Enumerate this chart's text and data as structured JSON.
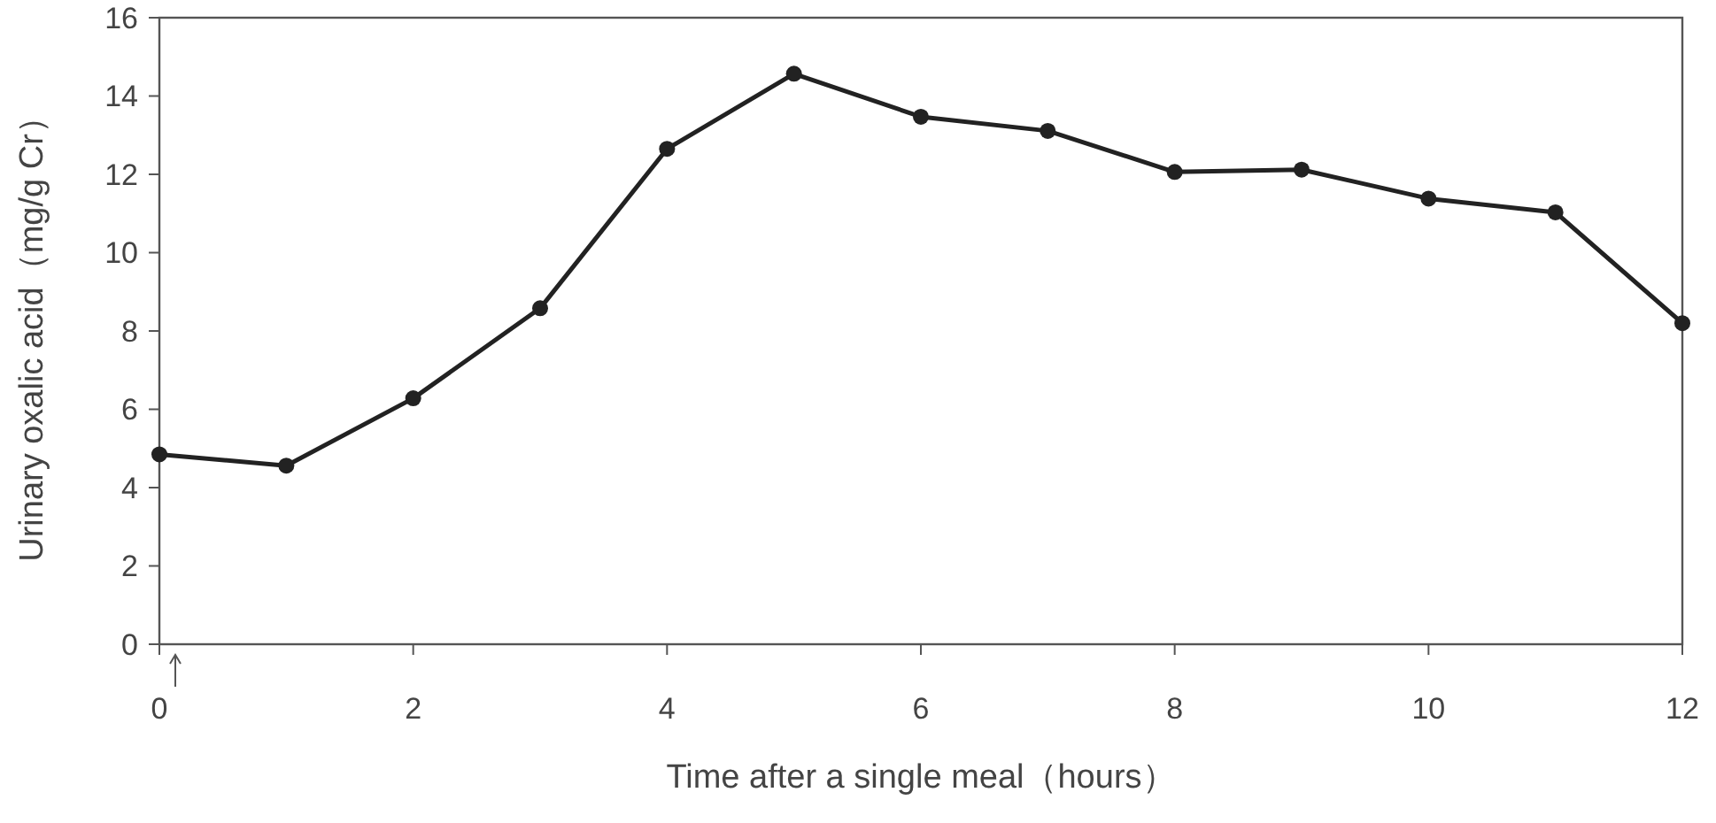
{
  "chart_data": {
    "type": "line",
    "xlabel": "Time after a single meal（hours）",
    "ylabel": "Urinary oxalic acid（mg/g Cr）",
    "x": [
      0,
      1,
      2,
      3,
      4,
      5,
      6,
      7,
      8,
      9,
      10,
      11,
      12
    ],
    "series": [
      {
        "color": "#222222",
        "values": [
          4.85,
          4.56,
          6.28,
          8.58,
          12.65,
          14.57,
          13.47,
          13.11,
          12.06,
          12.12,
          11.38,
          11.03,
          8.2
        ]
      }
    ],
    "xlim": [
      0,
      12
    ],
    "xticks": [
      0,
      2,
      4,
      6,
      8,
      10,
      12
    ],
    "ylim": [
      0,
      16
    ],
    "yticks": [
      0,
      2,
      4,
      6,
      8,
      10,
      12,
      14,
      16
    ],
    "grid": false,
    "marker": "circle",
    "line_style": "solid"
  }
}
